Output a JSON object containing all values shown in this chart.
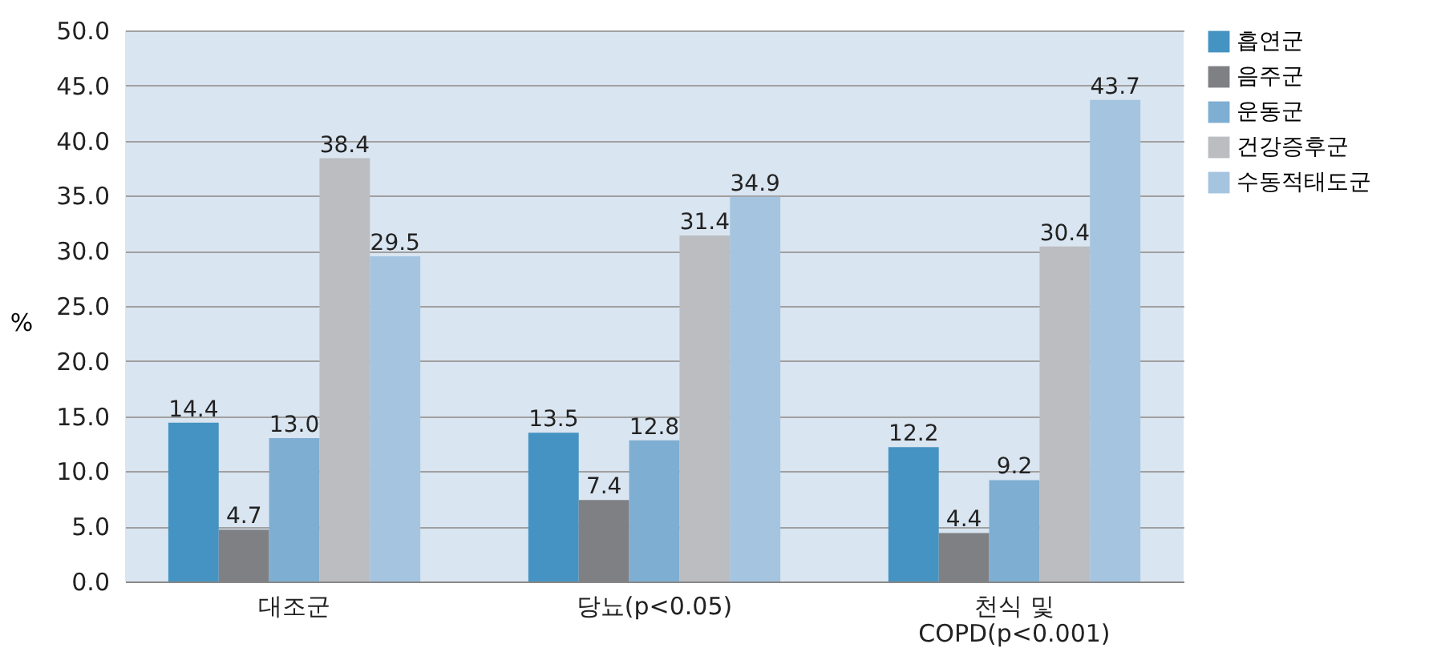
{
  "chart_data": {
    "type": "bar",
    "ylabel": "%",
    "categories": [
      "대조군",
      "당뇨(p<0.05)",
      "천식 및\nCOPD(p<0.001)"
    ],
    "series": [
      {
        "name": "흡연군",
        "color": "#4593c2",
        "values": [
          14.4,
          13.5,
          12.2
        ],
        "value_labels": [
          "14.4",
          "13.5",
          "12.2"
        ]
      },
      {
        "name": "음주군",
        "color": "#7f8083",
        "values": [
          4.7,
          7.4,
          4.4
        ],
        "value_labels": [
          "4.7",
          "7.4",
          "4.4"
        ]
      },
      {
        "name": "운동군",
        "color": "#7eaed2",
        "values": [
          13.0,
          12.8,
          9.2
        ],
        "value_labels": [
          "13.0",
          "12.8",
          "9.2"
        ]
      },
      {
        "name": "건강증후군",
        "color": "#bcbdc1",
        "values": [
          38.4,
          31.4,
          30.4
        ],
        "value_labels": [
          "38.4",
          "31.4",
          "30.4"
        ]
      },
      {
        "name": "수동적태도군",
        "color": "#a5c4e0",
        "values": [
          29.5,
          34.9,
          43.7
        ],
        "value_labels": [
          "29.5",
          "34.9",
          "43.7"
        ]
      }
    ],
    "ylim": [
      0,
      50
    ],
    "yticks": [
      {
        "value": 0,
        "label": "0.0"
      },
      {
        "value": 5,
        "label": "5.0"
      },
      {
        "value": 10,
        "label": "10.0"
      },
      {
        "value": 15,
        "label": "15.0"
      },
      {
        "value": 20,
        "label": "20.0"
      },
      {
        "value": 25,
        "label": "25.0"
      },
      {
        "value": 30,
        "label": "30.0"
      },
      {
        "value": 35,
        "label": "35.0"
      },
      {
        "value": 40,
        "label": "40.0"
      },
      {
        "value": 45,
        "label": "45.0"
      },
      {
        "value": 50,
        "label": "50.0"
      }
    ],
    "grid": "y",
    "legend": "right"
  }
}
